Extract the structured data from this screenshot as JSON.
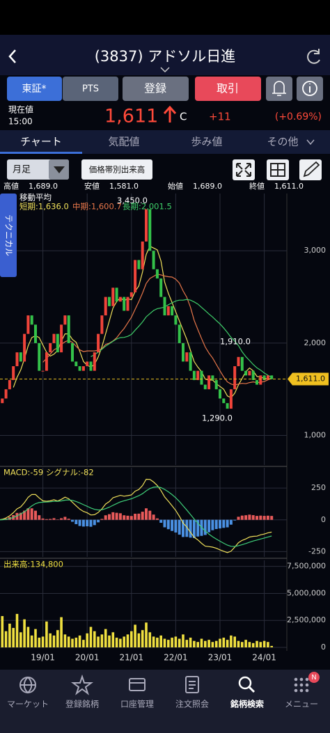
{
  "header": {
    "title": "(3837) アドソル日進"
  },
  "buttons": {
    "market": "東証*",
    "pts": "PTS",
    "register": "登録",
    "trade": "取引"
  },
  "quote": {
    "label": "現在値",
    "time": "15:00",
    "price": "1,611",
    "flag": "C",
    "change": "+11",
    "change_pct": "(+0.69%)"
  },
  "tabs": [
    "チャート",
    "気配値",
    "歩み値",
    "その他"
  ],
  "toolbar": {
    "period": "月足",
    "volume_profile": "価格帯別出来高"
  },
  "summary": [
    {
      "label": "高値",
      "value": "1,689.0"
    },
    {
      "label": "安値",
      "value": "1,581.0"
    },
    {
      "label": "始値",
      "value": "1,689.0"
    },
    {
      "label": "終値",
      "value": "1,611.0"
    }
  ],
  "side_tab": "テクニカル",
  "chart_data": [
    {
      "type": "candlestick",
      "title": "移動平均",
      "legend": [
        {
          "name": "短期:1,636.0",
          "color": "#f0e05a"
        },
        {
          "name": "中期:1,600.7",
          "color": "#e8774a"
        },
        {
          "name": "長期:2,001.5",
          "color": "#3fcf6a"
        }
      ],
      "categories": [
        null,
        null,
        null,
        null,
        null,
        null,
        null,
        null,
        null,
        null,
        null,
        null,
        "19/01",
        null,
        null,
        null,
        null,
        null,
        null,
        null,
        null,
        null,
        null,
        null,
        "20/01",
        null,
        null,
        null,
        null,
        null,
        null,
        null,
        null,
        null,
        null,
        null,
        "21/01",
        null,
        null,
        null,
        null,
        null,
        null,
        null,
        null,
        null,
        null,
        null,
        "22/01",
        null,
        null,
        null,
        null,
        null,
        null,
        null,
        null,
        null,
        null,
        null,
        "23/01",
        null,
        null,
        null,
        null,
        null,
        null,
        null,
        null,
        null,
        null,
        null,
        "24/01",
        null,
        null
      ],
      "values": [
        1350,
        1400,
        1500,
        1600,
        1750,
        1900,
        1800,
        2100,
        2300,
        2200,
        2000,
        1700,
        1700,
        1900,
        2000,
        2100,
        1900,
        2200,
        2300,
        2000,
        1800,
        1750,
        1700,
        1750,
        1800,
        1700,
        1900,
        2100,
        2300,
        2500,
        2400,
        2600,
        2450,
        2500,
        2350,
        2500,
        2550,
        2900,
        2800,
        3100,
        3450,
        3000,
        2800,
        2700,
        2500,
        2300,
        2400,
        2300,
        2200,
        2000,
        1800,
        1900,
        1700,
        1600,
        1700,
        1550,
        1500,
        1650,
        1600,
        1500,
        1400,
        1350,
        1290,
        1500,
        1750,
        1850,
        1700,
        1650,
        1700,
        1600,
        1550,
        1650,
        1600,
        1650,
        1611
      ],
      "up_color": "#f0443a",
      "down_color": "#34c24a",
      "ylim": [
        680,
        3620
      ],
      "yticks": [
        {
          "value": 1000,
          "label": "1,000"
        },
        {
          "value": 2000,
          "label": "2,000"
        },
        {
          "value": 3000,
          "label": "3,000"
        }
      ],
      "grid": true,
      "annotations": [
        {
          "value": 3450,
          "label": "3,450.0"
        },
        {
          "value": 1910,
          "label": "1,910.0"
        },
        {
          "value": 1290,
          "label": "1,290.0"
        }
      ],
      "current": {
        "value": 1611,
        "label": "1,611.0"
      }
    },
    {
      "type": "macd",
      "legend": [
        {
          "name": "MACD:-59",
          "color": "#f0e05a"
        },
        {
          "name": "シグナル:-82",
          "color": "#3fd07a"
        }
      ],
      "ylim": [
        -292,
        410
      ],
      "yticks": [
        -250,
        0,
        250
      ],
      "up_color": "#e85a5a",
      "down_color": "#4a90e2"
    },
    {
      "type": "bar",
      "title": "出来高:134,800",
      "color": "#f0e040",
      "values": [
        1200000,
        2900000,
        1500000,
        2200000,
        1800000,
        3100000,
        1400000,
        2600000,
        1900000,
        1100000,
        1700000,
        900000,
        1000000,
        2400000,
        1300000,
        1100000,
        1600000,
        2800000,
        1200000,
        1000000,
        800000,
        900000,
        1100000,
        700000,
        1300000,
        1900000,
        1500000,
        1000000,
        1200000,
        1700000,
        1100000,
        1400000,
        900000,
        800000,
        1000000,
        1200000,
        1500000,
        2100000,
        1300000,
        1600000,
        2300000,
        1400000,
        1000000,
        900000,
        1100000,
        800000,
        700000,
        900000,
        1000000,
        800000,
        1200000,
        700000,
        900000,
        600000,
        500000,
        800000,
        600000,
        700000,
        500000,
        600000,
        800000,
        900000,
        700000,
        1100000,
        1000000,
        600000,
        500000,
        700000,
        500000,
        400000,
        600000,
        500000,
        600000,
        500000,
        134800
      ],
      "ylim": [
        0,
        8060000
      ],
      "yticks": [
        0,
        {
          "value": 2500000,
          "label": "2,500,000"
        },
        {
          "value": 5000000,
          "label": "5,000,000"
        },
        {
          "value": 7500000,
          "label": "7,500,000"
        }
      ]
    }
  ],
  "nav": [
    "マーケット",
    "登録銘柄",
    "口座管理",
    "注文照会",
    "銘柄検索",
    "メニュー"
  ],
  "badge": "N"
}
